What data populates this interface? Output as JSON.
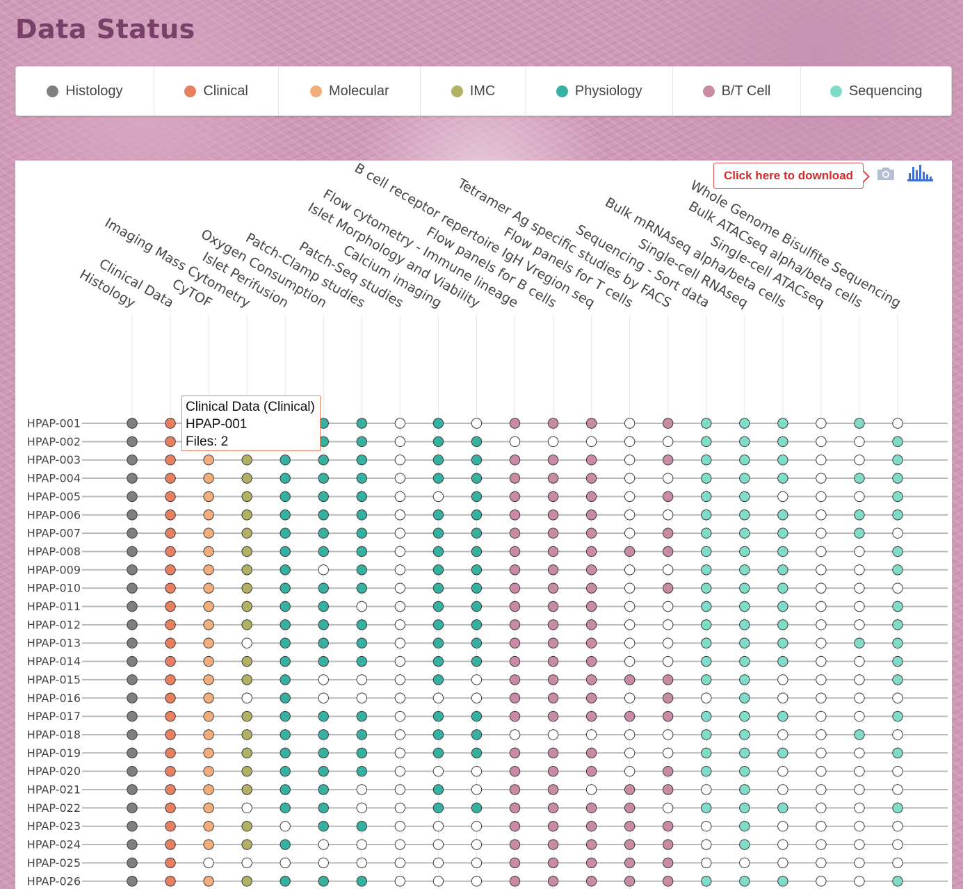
{
  "page": {
    "title": "Data Status"
  },
  "legend": [
    {
      "label": "Histology",
      "color": "#7f7f7f"
    },
    {
      "label": "Clinical",
      "color": "#e8805f"
    },
    {
      "label": "Molecular",
      "color": "#f2ad7d"
    },
    {
      "label": "IMC",
      "color": "#b1b063"
    },
    {
      "label": "Physiology",
      "color": "#36b0a0"
    },
    {
      "label": "B/T Cell",
      "color": "#c98aa6"
    },
    {
      "label": "Sequencing",
      "color": "#7fdcc9"
    }
  ],
  "toolbar": {
    "download_label": "Click here to download",
    "camera_icon": "camera-icon",
    "plotly_icon": "plotly-logo-icon"
  },
  "tooltip": {
    "line1": "Clinical Data (Clinical)",
    "line2": "HPAP-001",
    "line3": "Files: 2"
  },
  "chart_data": {
    "type": "scatter",
    "empty_color": "#ffffff",
    "columns": [
      {
        "label": "Histology",
        "category": "Histology"
      },
      {
        "label": "Clinical Data",
        "category": "Clinical"
      },
      {
        "label": "CyTOF",
        "category": "Molecular"
      },
      {
        "label": "Imaging Mass Cytometry",
        "category": "IMC"
      },
      {
        "label": "Islet Perifusion",
        "category": "Physiology"
      },
      {
        "label": "Oxygen Consumption",
        "category": "Physiology"
      },
      {
        "label": "Patch-Clamp studies",
        "category": "Physiology"
      },
      {
        "label": "Patch-Seq studies",
        "category": "Physiology"
      },
      {
        "label": "Calcium imaging",
        "category": "Physiology"
      },
      {
        "label": "Islet Morphology and Viability",
        "category": "Physiology"
      },
      {
        "label": "Flow cytometry - Immune lineage",
        "category": "B/T Cell"
      },
      {
        "label": "Flow panels for B cells",
        "category": "B/T Cell"
      },
      {
        "label": "B cell receptor repertoire IgH Vregion seq",
        "category": "B/T Cell"
      },
      {
        "label": "Flow panels for T cells",
        "category": "B/T Cell"
      },
      {
        "label": "Tetramer Ag specific studies by FACS",
        "category": "B/T Cell"
      },
      {
        "label": "Sequencing - Sort data",
        "category": "Sequencing"
      },
      {
        "label": "Single-cell RNAseq",
        "category": "Sequencing"
      },
      {
        "label": "Bulk mRNAseq alpha/beta cells",
        "category": "Sequencing"
      },
      {
        "label": "Single-cell ATACseq",
        "category": "Sequencing"
      },
      {
        "label": "Bulk ATACseq alpha/beta cells",
        "category": "Sequencing"
      },
      {
        "label": "Whole Genome Bisulfite Sequencing",
        "category": "Sequencing"
      }
    ],
    "rows": [
      {
        "label": "HPAP-001",
        "present": [
          1,
          1,
          1,
          1,
          1,
          1,
          1,
          0,
          1,
          0,
          1,
          1,
          1,
          0,
          1,
          1,
          1,
          1,
          0,
          1,
          0
        ]
      },
      {
        "label": "HPAP-002",
        "present": [
          1,
          1,
          1,
          1,
          1,
          1,
          1,
          0,
          1,
          1,
          0,
          0,
          0,
          0,
          0,
          1,
          1,
          1,
          0,
          0,
          1
        ]
      },
      {
        "label": "HPAP-003",
        "present": [
          1,
          1,
          1,
          1,
          1,
          1,
          1,
          0,
          1,
          1,
          1,
          1,
          1,
          0,
          1,
          1,
          1,
          1,
          0,
          0,
          1
        ]
      },
      {
        "label": "HPAP-004",
        "present": [
          1,
          1,
          1,
          1,
          1,
          1,
          1,
          0,
          1,
          1,
          1,
          1,
          1,
          0,
          0,
          1,
          1,
          1,
          0,
          1,
          1
        ]
      },
      {
        "label": "HPAP-005",
        "present": [
          1,
          1,
          1,
          1,
          1,
          1,
          1,
          0,
          0,
          1,
          1,
          1,
          1,
          0,
          1,
          1,
          1,
          0,
          0,
          0,
          1
        ]
      },
      {
        "label": "HPAP-006",
        "present": [
          1,
          1,
          1,
          1,
          1,
          1,
          1,
          0,
          1,
          1,
          1,
          1,
          1,
          0,
          0,
          1,
          1,
          1,
          0,
          1,
          1
        ]
      },
      {
        "label": "HPAP-007",
        "present": [
          1,
          1,
          1,
          1,
          1,
          1,
          1,
          0,
          1,
          1,
          1,
          1,
          1,
          0,
          1,
          1,
          1,
          1,
          0,
          1,
          0
        ]
      },
      {
        "label": "HPAP-008",
        "present": [
          1,
          1,
          1,
          1,
          1,
          1,
          1,
          0,
          1,
          1,
          1,
          1,
          1,
          1,
          1,
          1,
          1,
          1,
          0,
          0,
          1
        ]
      },
      {
        "label": "HPAP-009",
        "present": [
          1,
          1,
          1,
          1,
          1,
          0,
          1,
          0,
          1,
          1,
          1,
          1,
          1,
          0,
          0,
          1,
          1,
          1,
          0,
          0,
          1
        ]
      },
      {
        "label": "HPAP-010",
        "present": [
          1,
          1,
          1,
          1,
          1,
          1,
          1,
          0,
          1,
          1,
          1,
          1,
          1,
          0,
          1,
          1,
          1,
          1,
          0,
          0,
          0
        ]
      },
      {
        "label": "HPAP-011",
        "present": [
          1,
          1,
          1,
          1,
          1,
          1,
          0,
          0,
          1,
          1,
          1,
          1,
          1,
          0,
          0,
          1,
          1,
          1,
          0,
          0,
          1
        ]
      },
      {
        "label": "HPAP-012",
        "present": [
          1,
          1,
          1,
          1,
          1,
          1,
          1,
          0,
          1,
          1,
          1,
          1,
          1,
          0,
          0,
          1,
          1,
          1,
          0,
          0,
          1
        ]
      },
      {
        "label": "HPAP-013",
        "present": [
          1,
          1,
          1,
          0,
          1,
          1,
          1,
          0,
          1,
          1,
          1,
          1,
          1,
          0,
          0,
          1,
          1,
          1,
          0,
          1,
          1
        ]
      },
      {
        "label": "HPAP-014",
        "present": [
          1,
          1,
          1,
          1,
          1,
          1,
          1,
          0,
          1,
          1,
          1,
          1,
          1,
          0,
          0,
          1,
          1,
          1,
          0,
          0,
          1
        ]
      },
      {
        "label": "HPAP-015",
        "present": [
          1,
          1,
          1,
          1,
          1,
          0,
          0,
          0,
          1,
          0,
          1,
          1,
          1,
          1,
          1,
          1,
          1,
          0,
          0,
          0,
          1
        ]
      },
      {
        "label": "HPAP-016",
        "present": [
          1,
          1,
          1,
          0,
          1,
          0,
          0,
          0,
          0,
          0,
          1,
          1,
          1,
          0,
          1,
          0,
          1,
          0,
          0,
          0,
          0
        ]
      },
      {
        "label": "HPAP-017",
        "present": [
          1,
          1,
          1,
          1,
          1,
          1,
          1,
          0,
          1,
          1,
          1,
          1,
          1,
          1,
          1,
          1,
          1,
          1,
          0,
          0,
          1
        ]
      },
      {
        "label": "HPAP-018",
        "present": [
          1,
          1,
          1,
          1,
          1,
          1,
          1,
          0,
          1,
          1,
          0,
          0,
          0,
          0,
          0,
          1,
          1,
          0,
          0,
          1,
          0
        ]
      },
      {
        "label": "HPAP-019",
        "present": [
          1,
          1,
          1,
          1,
          1,
          1,
          1,
          0,
          1,
          1,
          1,
          1,
          1,
          0,
          0,
          1,
          1,
          1,
          0,
          0,
          1
        ]
      },
      {
        "label": "HPAP-020",
        "present": [
          1,
          1,
          1,
          1,
          1,
          1,
          1,
          0,
          0,
          0,
          1,
          1,
          1,
          0,
          1,
          1,
          1,
          0,
          0,
          0,
          0
        ]
      },
      {
        "label": "HPAP-021",
        "present": [
          1,
          1,
          1,
          1,
          1,
          1,
          0,
          0,
          1,
          0,
          1,
          1,
          0,
          1,
          1,
          0,
          1,
          0,
          0,
          0,
          0
        ]
      },
      {
        "label": "HPAP-022",
        "present": [
          1,
          1,
          1,
          0,
          1,
          1,
          0,
          0,
          1,
          1,
          1,
          1,
          1,
          1,
          0,
          1,
          1,
          1,
          0,
          0,
          1
        ]
      },
      {
        "label": "HPAP-023",
        "present": [
          1,
          1,
          1,
          1,
          0,
          1,
          1,
          0,
          0,
          0,
          1,
          1,
          1,
          1,
          1,
          0,
          1,
          0,
          0,
          0,
          0
        ]
      },
      {
        "label": "HPAP-024",
        "present": [
          1,
          1,
          1,
          1,
          1,
          0,
          0,
          0,
          0,
          0,
          1,
          1,
          1,
          1,
          1,
          0,
          1,
          0,
          0,
          0,
          0
        ]
      },
      {
        "label": "HPAP-025",
        "present": [
          1,
          1,
          0,
          0,
          0,
          0,
          0,
          0,
          0,
          0,
          1,
          1,
          1,
          1,
          1,
          0,
          0,
          0,
          0,
          0,
          0
        ]
      },
      {
        "label": "HPAP-026",
        "present": [
          1,
          1,
          1,
          1,
          1,
          1,
          1,
          0,
          0,
          0,
          1,
          1,
          1,
          1,
          1,
          1,
          1,
          1,
          0,
          0,
          1
        ]
      }
    ]
  }
}
